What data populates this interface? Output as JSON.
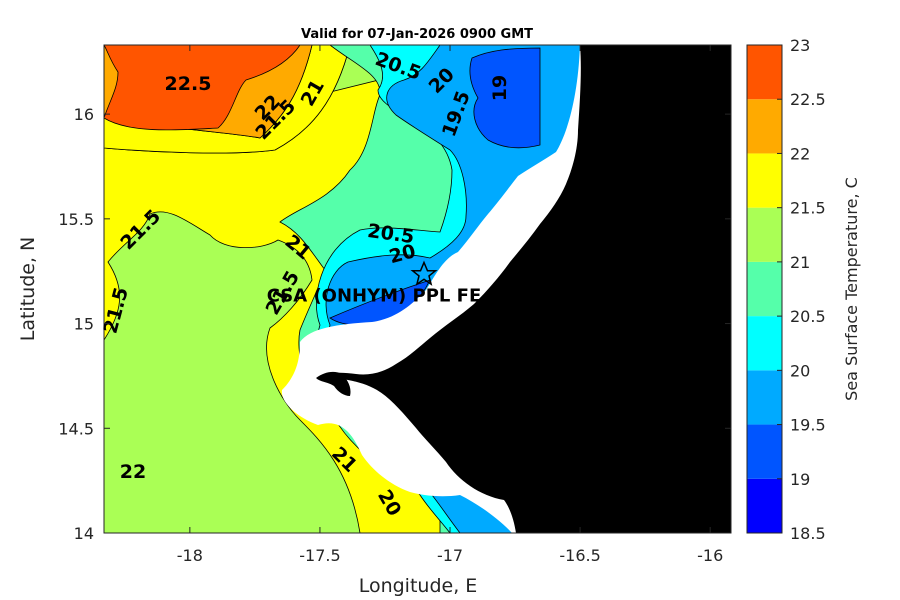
{
  "title": "Valid for 07-Jan-2026 0900 GMT",
  "xlabel": "Longitude, E",
  "ylabel": "Latitude, N",
  "colorbar_label": "Sea Surface Temperature, C",
  "site_label": "CSA (ONHYM) PPL FE",
  "site_lon": -17.1,
  "site_lat": 15.22,
  "x_ticks": [
    "-18",
    "-17.5",
    "-17",
    "-16.5",
    "-16"
  ],
  "x_tick_values": [
    -18,
    -17.5,
    -17,
    -16.5,
    -16
  ],
  "y_ticks": [
    "16",
    "15.5",
    "15",
    "14.5",
    "14"
  ],
  "y_tick_values": [
    16,
    15.5,
    15,
    14.5,
    14
  ],
  "colorbar_ticks": [
    "23",
    "22.5",
    "22",
    "21.5",
    "21",
    "20.5",
    "20",
    "19.5",
    "19",
    "18.5"
  ],
  "colorbar_tick_values": [
    23,
    22.5,
    22,
    21.5,
    21,
    20.5,
    20,
    19.5,
    19,
    18.5
  ],
  "colors": {
    "t22_5": "#ff5500",
    "t22": "#ffaa00",
    "t21_5": "#ffff00",
    "t21": "#aaff55",
    "t20_5": "#55ffaa",
    "t20": "#00ffff",
    "t19_5": "#00aaff",
    "t19": "#0055ff",
    "t18_5": "#0000ff",
    "land": "#000000",
    "nodata": "#ffffff"
  },
  "chart_data": {
    "type": "heatmap",
    "title": "Valid for 07-Jan-2026 0900 GMT",
    "xlabel": "Longitude, E",
    "ylabel": "Latitude, N",
    "xlim": [
      -18.33,
      -15.92
    ],
    "ylim": [
      14,
      16.33
    ],
    "colorbar": {
      "label": "Sea Surface Temperature, C",
      "range": [
        18.5,
        23
      ],
      "levels": [
        18.5,
        19,
        19.5,
        20,
        20.5,
        21,
        21.5,
        22,
        22.5,
        23
      ]
    },
    "contour_labels": [
      "22.5",
      "22",
      "21.5",
      "21",
      "20.5",
      "20",
      "19.5",
      "19",
      "21.5",
      "21.5",
      "20.5",
      "20",
      "21",
      "21.5",
      "22",
      "21",
      "20"
    ],
    "annotation": {
      "text": "CSA (ONHYM) PPL FE",
      "lon": -17.1,
      "lat": 15.22,
      "marker": "star"
    }
  }
}
